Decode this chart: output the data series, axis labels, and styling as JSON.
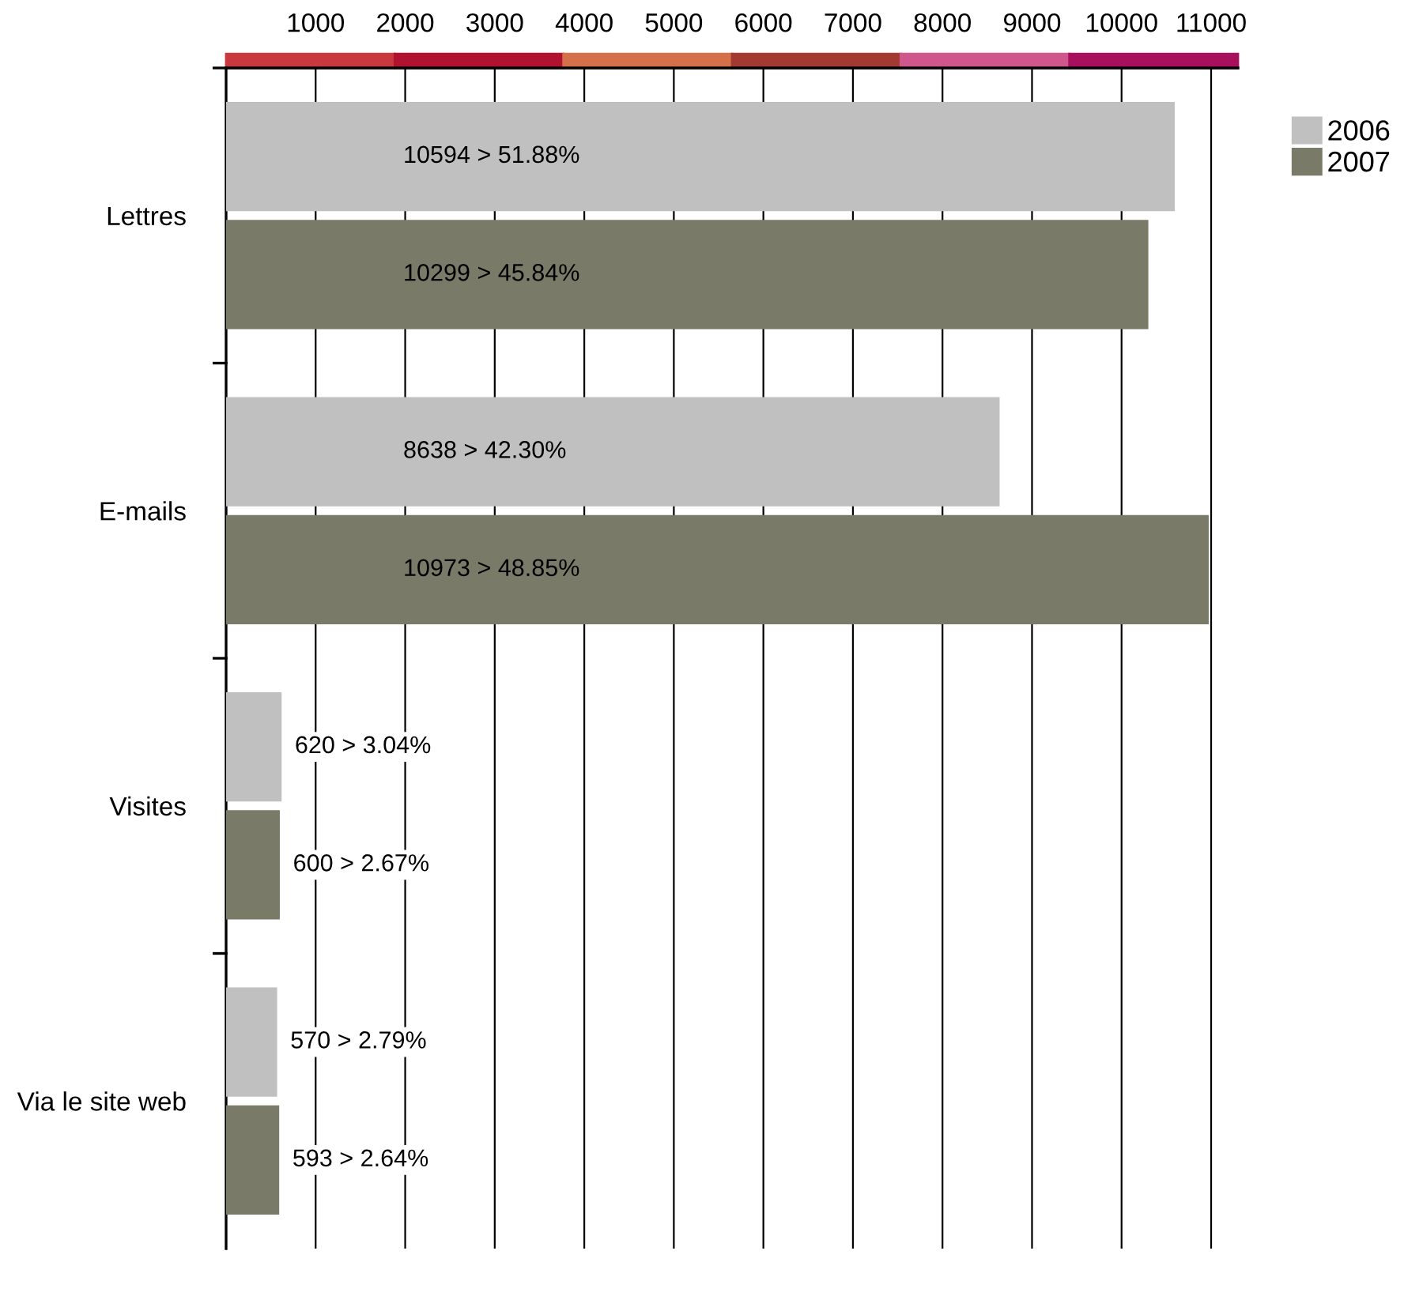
{
  "chart_data": {
    "type": "bar",
    "orientation": "horizontal",
    "categories": [
      "Lettres",
      "E-mails",
      "Visites",
      "Via le site web"
    ],
    "series": [
      {
        "name": "2006",
        "color": "#c0c0c0",
        "values": [
          10594,
          8638,
          620,
          570
        ],
        "value_labels": [
          "10594 > 51.88%",
          "8638 > 42.30%",
          "620 > 3.04%",
          "570 > 2.79%"
        ]
      },
      {
        "name": "2007",
        "color": "#7a7a68",
        "values": [
          10299,
          10973,
          600,
          593
        ],
        "value_labels": [
          "10299 > 45.84%",
          "10973 > 48.85%",
          "600 > 2.67%",
          "593 > 2.64%"
        ]
      }
    ],
    "xlim": [
      0,
      11300
    ],
    "xticks": [
      1000,
      2000,
      3000,
      4000,
      5000,
      6000,
      7000,
      8000,
      9000,
      10000,
      11000
    ],
    "grid": "x",
    "legend": "top right"
  }
}
